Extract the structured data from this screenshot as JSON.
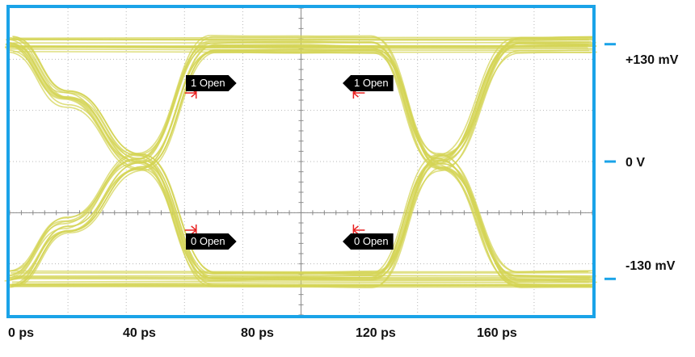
{
  "chart_data": {
    "type": "line",
    "title": "",
    "xlabel": "",
    "ylabel": "",
    "x_ticks": [
      "0 ps",
      "40 ps",
      "80 ps",
      "120 ps",
      "160 ps"
    ],
    "y_ticks": [
      "+130 mV",
      "0 V",
      "-130 mV"
    ],
    "xlim": [
      0,
      200
    ],
    "ylim": [
      -170,
      170
    ],
    "grid": true,
    "series": [
      {
        "values_desc": "",
        "x": [
          0,
          20,
          45,
          70,
          100,
          125,
          148,
          175,
          200
        ],
        "y": [
          130,
          70,
          0,
          -130,
          -130,
          -130,
          0,
          130,
          130
        ]
      },
      {
        "x": [
          0,
          20,
          45,
          70,
          100,
          125,
          148,
          175,
          200
        ],
        "y": [
          -130,
          -70,
          0,
          130,
          130,
          130,
          0,
          -130,
          -130
        ]
      },
      {
        "x": [
          0,
          200
        ],
        "y": [
          130,
          130
        ]
      },
      {
        "x": [
          0,
          200
        ],
        "y": [
          -130,
          -130
        ]
      }
    ],
    "annotations": [
      {
        "label": "1 Open",
        "x": 64,
        "y": 76,
        "side": "left"
      },
      {
        "label": "1 Open",
        "x": 118,
        "y": 76,
        "side": "right"
      },
      {
        "label": "0 Open",
        "x": 64,
        "y": -76,
        "side": "left"
      },
      {
        "label": "0 Open",
        "x": 118,
        "y": -76,
        "side": "right"
      }
    ]
  },
  "colors": {
    "trace": "#d4d455",
    "frame": "#1aa3e8",
    "grid": "#b8b8b8",
    "marker": "#e82020",
    "plot_bg": "#ffffff"
  }
}
